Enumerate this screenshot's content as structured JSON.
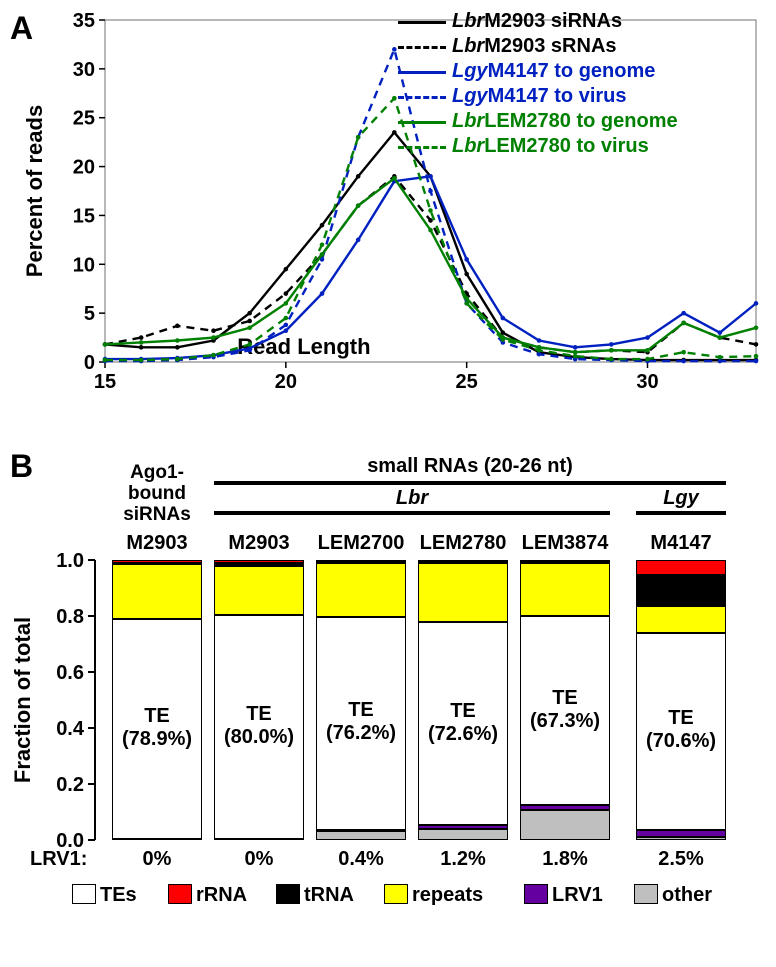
{
  "panelA": {
    "label": "A",
    "ylabel": "Percent of reads",
    "xlabel": "Read Length",
    "xlim": [
      15,
      33
    ],
    "ylim": [
      0,
      35
    ],
    "xticks": [
      15,
      20,
      25,
      30
    ],
    "yticks": [
      0,
      5,
      10,
      15,
      20,
      25,
      30,
      35
    ],
    "axis_fontsize": 22,
    "tick_fontsize": 20,
    "series": [
      {
        "name": "LbrM2903 siRNAs",
        "color": "#000000",
        "dash": false,
        "it": "Lbr",
        "rest": "M2903 siRNAs",
        "y": [
          1.8,
          1.5,
          1.5,
          2.2,
          5.0,
          9.5,
          14.0,
          19.0,
          23.5,
          19.0,
          9.0,
          3.0,
          1.0,
          0.5,
          0.3,
          0.2,
          0.2,
          0.2,
          0.2
        ]
      },
      {
        "name": "LbrM2903 sRNAs",
        "color": "#000000",
        "dash": true,
        "it": "Lbr",
        "rest": "M2903 sRNAs",
        "y": [
          1.8,
          2.5,
          3.7,
          3.2,
          4.2,
          7.0,
          11.0,
          16.0,
          19.0,
          14.5,
          7.0,
          2.5,
          1.5,
          1.0,
          1.2,
          1.0,
          4.0,
          2.5,
          1.8
        ]
      },
      {
        "name": "LgyM4147 to genome",
        "color": "#0020c0",
        "dash": false,
        "it": "Lgy",
        "rest": "M4147 to genome",
        "y": [
          0.3,
          0.3,
          0.4,
          0.7,
          1.4,
          3.2,
          7.0,
          12.5,
          18.5,
          19.0,
          10.5,
          4.5,
          2.2,
          1.5,
          1.8,
          2.5,
          5.0,
          3.0,
          6.0
        ]
      },
      {
        "name": "LgyM4147 to virus",
        "color": "#0020c0",
        "dash": true,
        "it": "Lgy",
        "rest": "M4147 to virus",
        "y": [
          0.1,
          0.1,
          0.2,
          0.5,
          1.2,
          3.8,
          10.5,
          23.0,
          32.0,
          17.5,
          6.0,
          2.0,
          0.8,
          0.3,
          0.2,
          0.1,
          0.1,
          0.1,
          0.1
        ]
      },
      {
        "name": "LbrLEM2780 to genome",
        "color": "#008000",
        "dash": false,
        "it": "Lbr",
        "rest": "LEM2780 to genome",
        "y": [
          1.8,
          2.0,
          2.2,
          2.5,
          3.5,
          6.0,
          11.0,
          16.0,
          18.8,
          13.5,
          6.5,
          2.5,
          1.5,
          1.0,
          1.2,
          1.2,
          4.0,
          2.5,
          3.5
        ]
      },
      {
        "name": "LbrLEM2780 to virus",
        "color": "#008000",
        "dash": true,
        "it": "Lbr",
        "rest": "LEM2780 to virus",
        "y": [
          0.2,
          0.2,
          0.3,
          0.7,
          1.8,
          4.5,
          12.0,
          23.0,
          27.0,
          15.5,
          6.0,
          2.3,
          1.2,
          0.6,
          0.3,
          0.3,
          1.0,
          0.5,
          0.6
        ]
      }
    ]
  },
  "panelB": {
    "label": "B",
    "ylabel": "Fraction of total",
    "ylim": [
      0,
      1.0
    ],
    "yticks": [
      0,
      0.2,
      0.4,
      0.6,
      0.8,
      1.0
    ],
    "legend_order": [
      "TEs",
      "rRNA",
      "tRNA",
      "repeats",
      "LRV1",
      "other"
    ],
    "colors": {
      "TEs": "#ffffff",
      "rRNA": "#ff0000",
      "tRNA": "#000000",
      "repeats": "#ffff00",
      "LRV1": "#6400a0",
      "other": "#bfbfbf"
    },
    "lrv_label": "LRV1:",
    "header": {
      "left": "Ago1-\nbound\nsiRNAs",
      "main": "small RNAs (20-26 nt)",
      "group1": "Lbr",
      "group2": "Lgy"
    },
    "columns": [
      {
        "name": "M2903",
        "group": "Ago1",
        "segments": {
          "other": 0.002,
          "LRV1": 0.0,
          "TEs": 0.789,
          "repeats": 0.195,
          "tRNA": 0.004,
          "rRNA": 0.01
        },
        "te_label": "TE\n(78.9%)",
        "lrv": "0%"
      },
      {
        "name": "M2903",
        "group": "Lbr",
        "segments": {
          "other": 0.003,
          "LRV1": 0.0,
          "TEs": 0.8,
          "repeats": 0.175,
          "tRNA": 0.01,
          "rRNA": 0.012
        },
        "te_label": "TE\n(80.0%)",
        "lrv": "0%"
      },
      {
        "name": "LEM2700",
        "group": "Lbr",
        "segments": {
          "other": 0.032,
          "LRV1": 0.004,
          "TEs": 0.762,
          "repeats": 0.19,
          "tRNA": 0.004,
          "rRNA": 0.008
        },
        "te_label": "TE\n(76.2%)",
        "lrv": "0.4%"
      },
      {
        "name": "LEM2780",
        "group": "Lbr",
        "segments": {
          "other": 0.04,
          "LRV1": 0.012,
          "TEs": 0.726,
          "repeats": 0.21,
          "tRNA": 0.004,
          "rRNA": 0.008
        },
        "te_label": "TE\n(72.6%)",
        "lrv": "1.2%"
      },
      {
        "name": "LEM3874",
        "group": "Lbr",
        "segments": {
          "other": 0.108,
          "LRV1": 0.018,
          "TEs": 0.673,
          "repeats": 0.189,
          "tRNA": 0.004,
          "rRNA": 0.008
        },
        "te_label": "TE\n(67.3%)",
        "lrv": "1.8%"
      },
      {
        "name": "M4147",
        "group": "Lgy",
        "segments": {
          "other": 0.01,
          "LRV1": 0.025,
          "TEs": 0.706,
          "repeats": 0.095,
          "tRNA": 0.11,
          "rRNA": 0.054
        },
        "te_label": "TE\n(70.6%)",
        "lrv": "2.5%"
      }
    ]
  }
}
